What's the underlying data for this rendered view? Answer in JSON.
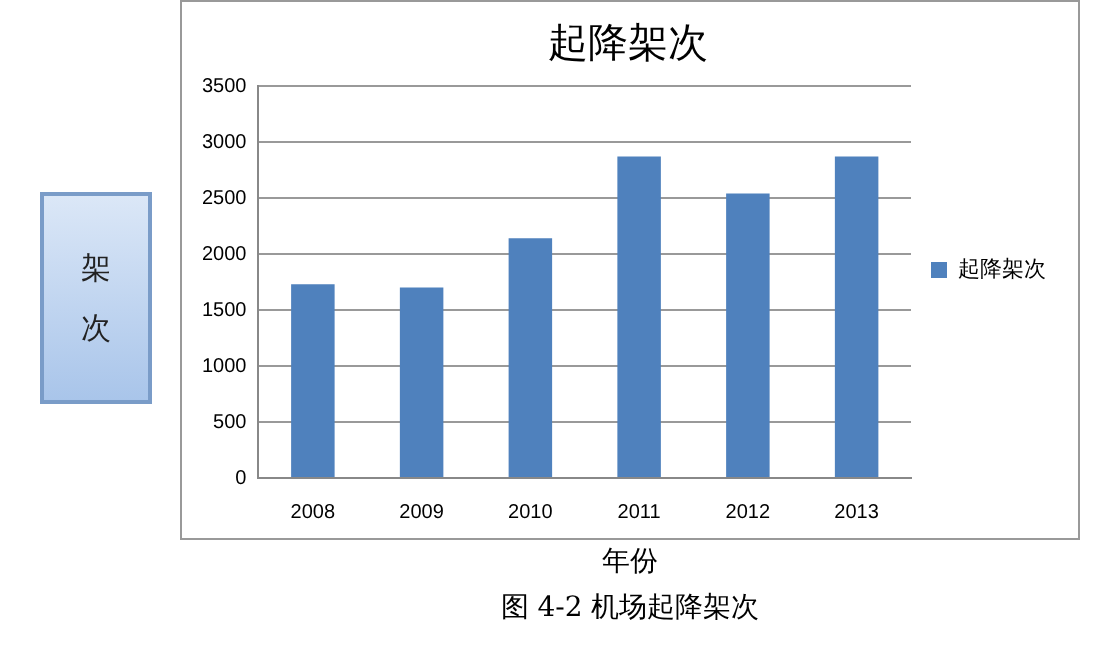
{
  "chart_data": {
    "type": "bar",
    "title": "起降架次",
    "xlabel": "年份",
    "ylabel": "架次",
    "categories": [
      "2008",
      "2009",
      "2010",
      "2011",
      "2012",
      "2013"
    ],
    "series": [
      {
        "name": "起降架次",
        "color": "#4f81bd",
        "values": [
          1730,
          1700,
          2140,
          2870,
          2540,
          2870
        ]
      }
    ],
    "ylim": [
      0,
      3500
    ],
    "yticks": [
      0,
      500,
      1000,
      1500,
      2000,
      2500,
      3000,
      3500
    ],
    "grid": "y",
    "legend": "right",
    "annotations": [
      "图 4-2 机场起降架次"
    ]
  }
}
